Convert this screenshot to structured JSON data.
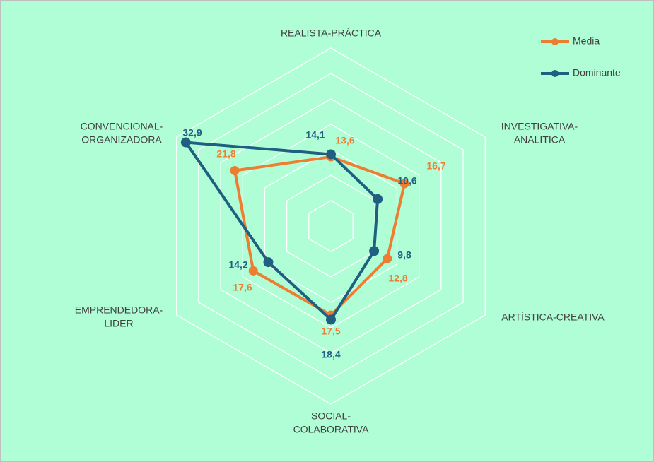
{
  "chart_data": {
    "type": "radar",
    "categories": [
      [
        "REALISTA-PRÁCTICA"
      ],
      [
        "INVESTIGATIVA-",
        "ANALITICA"
      ],
      [
        "ARTÍSTICA-CREATIVA"
      ],
      [
        "SOCIAL-",
        "COLABORATIVA"
      ],
      [
        "EMPRENDEDORA-",
        "LIDER"
      ],
      [
        "CONVENCIONAL-",
        "ORGANIZADORA"
      ]
    ],
    "series": [
      {
        "name": "Media",
        "color": "#ed7d31",
        "values": [
          13.6,
          16.7,
          12.8,
          17.5,
          17.6,
          21.8
        ],
        "value_labels": [
          "13,6",
          "16,7",
          "12,8",
          "17,5",
          "17,6",
          "21,8"
        ]
      },
      {
        "name": "Dominante",
        "color": "#1f5f80",
        "values": [
          14.1,
          10.6,
          9.8,
          18.4,
          14.2,
          32.9
        ],
        "value_labels": [
          "14,1",
          "10,6",
          "9,8",
          "18,4",
          "14,2",
          "32,9"
        ]
      }
    ],
    "rlim": [
      0,
      35
    ],
    "rticks": [
      0,
      5,
      10,
      15,
      20,
      25,
      30,
      35
    ],
    "grid": true,
    "legend": "top-right"
  }
}
